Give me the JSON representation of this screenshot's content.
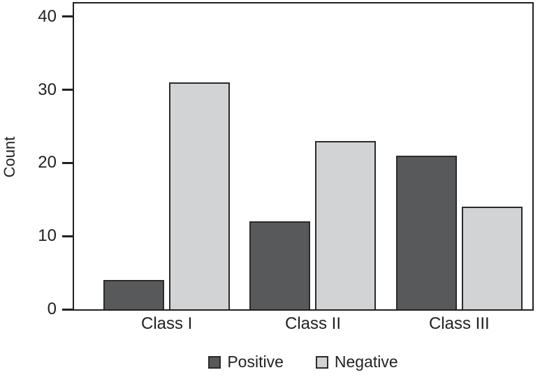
{
  "chart_data": {
    "type": "bar",
    "title": "",
    "xlabel": "",
    "ylabel": "Count",
    "categories": [
      "Class I",
      "Class II",
      "Class III"
    ],
    "series": [
      {
        "name": "Positive",
        "color": "#58595b",
        "values": [
          4,
          12,
          21
        ]
      },
      {
        "name": "Negative",
        "color": "#d1d3d4",
        "values": [
          31,
          23,
          14
        ]
      }
    ],
    "yticks": [
      0,
      10,
      20,
      30,
      40
    ],
    "ylim": [
      0,
      41.8
    ],
    "grid": false,
    "legend_position": "bottom",
    "bar_border_color": "#2b2b2b",
    "axis_color": "#231f20",
    "text_color": "#231f20"
  }
}
